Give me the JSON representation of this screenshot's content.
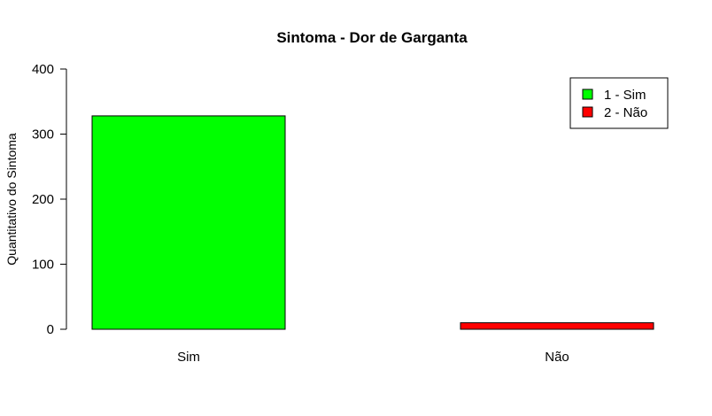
{
  "chart_data": {
    "type": "bar",
    "title": "Sintoma - Dor de Garganta",
    "xlabel": "",
    "ylabel": "Quantitativo do Sintoma",
    "categories": [
      "Sim",
      "Não"
    ],
    "values": [
      328,
      10
    ],
    "colors": [
      "#00ff00",
      "#ff0000"
    ],
    "ylim": [
      0,
      400
    ],
    "yticks": [
      0,
      100,
      200,
      300,
      400
    ],
    "grid": false,
    "legend": {
      "position": "top-right",
      "entries": [
        {
          "label": "1 - Sim",
          "color": "#00ff00"
        },
        {
          "label": "2 - Não",
          "color": "#ff0000"
        }
      ]
    }
  }
}
